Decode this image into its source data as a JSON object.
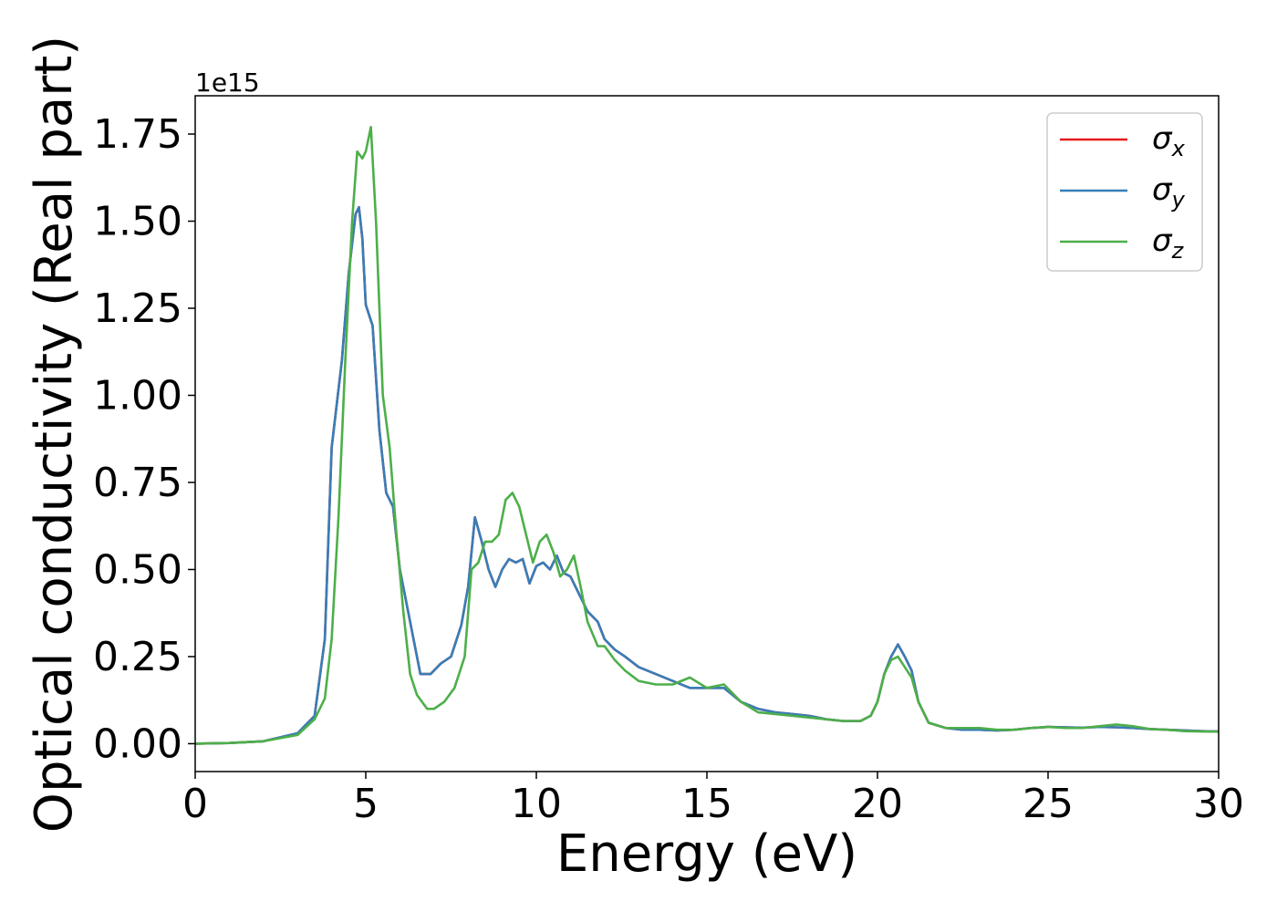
{
  "chart_data": {
    "type": "line",
    "xlabel": "Energy (eV)",
    "ylabel": "Optical conductivity (Real part)",
    "y_offset_label": "1e15",
    "xlim": [
      0,
      30
    ],
    "ylim": [
      -0.08,
      1.86
    ],
    "x_ticks": [
      0,
      5,
      10,
      15,
      20,
      25,
      30
    ],
    "x_tick_labels": [
      "0",
      "5",
      "10",
      "15",
      "20",
      "25",
      "30"
    ],
    "y_ticks": [
      0.0,
      0.25,
      0.5,
      0.75,
      1.0,
      1.25,
      1.5,
      1.75
    ],
    "y_tick_labels": [
      "0.00",
      "0.25",
      "0.50",
      "0.75",
      "1.00",
      "1.25",
      "1.50",
      "1.75"
    ],
    "grid": false,
    "legend_position": "top-right",
    "series": [
      {
        "name": "σx",
        "symbol": "σ",
        "subscript": "x",
        "color": "#e41a1c",
        "x": [
          0,
          1,
          2,
          3,
          3.5,
          3.8,
          4.0,
          4.3,
          4.5,
          4.7,
          4.8,
          4.9,
          5.0,
          5.2,
          5.4,
          5.6,
          5.8,
          6.0,
          6.3,
          6.6,
          6.9,
          7.2,
          7.5,
          7.8,
          8.0,
          8.2,
          8.4,
          8.6,
          8.8,
          9.0,
          9.2,
          9.4,
          9.6,
          9.8,
          10.0,
          10.2,
          10.4,
          10.6,
          10.8,
          11.0,
          11.2,
          11.5,
          11.8,
          12.0,
          12.3,
          12.6,
          13.0,
          13.5,
          14.0,
          14.5,
          15.0,
          15.5,
          16.0,
          16.5,
          17.0,
          17.5,
          18.0,
          18.5,
          19.0,
          19.5,
          19.8,
          20.0,
          20.2,
          20.4,
          20.6,
          20.8,
          21.0,
          21.2,
          21.5,
          22.0,
          22.5,
          23.0,
          23.5,
          24.0,
          24.5,
          25.0,
          25.5,
          26.0,
          26.5,
          27.0,
          27.5,
          28.0,
          28.5,
          29.0,
          29.5,
          30.0
        ],
        "y": [
          0.0,
          0.002,
          0.007,
          0.03,
          0.08,
          0.3,
          0.85,
          1.1,
          1.35,
          1.52,
          1.54,
          1.45,
          1.26,
          1.2,
          0.9,
          0.72,
          0.68,
          0.5,
          0.35,
          0.2,
          0.2,
          0.23,
          0.25,
          0.34,
          0.45,
          0.65,
          0.58,
          0.5,
          0.45,
          0.5,
          0.53,
          0.52,
          0.53,
          0.46,
          0.51,
          0.52,
          0.5,
          0.54,
          0.49,
          0.48,
          0.44,
          0.38,
          0.35,
          0.3,
          0.27,
          0.25,
          0.22,
          0.2,
          0.18,
          0.16,
          0.16,
          0.16,
          0.12,
          0.1,
          0.09,
          0.085,
          0.08,
          0.07,
          0.065,
          0.065,
          0.08,
          0.12,
          0.2,
          0.25,
          0.285,
          0.25,
          0.21,
          0.12,
          0.06,
          0.045,
          0.04,
          0.04,
          0.038,
          0.04,
          0.045,
          0.048,
          0.047,
          0.046,
          0.048,
          0.047,
          0.045,
          0.042,
          0.04,
          0.038,
          0.036,
          0.035
        ]
      },
      {
        "name": "σy",
        "symbol": "σ",
        "subscript": "y",
        "color": "#377eb8",
        "x": [
          0,
          1,
          2,
          3,
          3.5,
          3.8,
          4.0,
          4.3,
          4.5,
          4.7,
          4.8,
          4.9,
          5.0,
          5.2,
          5.4,
          5.6,
          5.8,
          6.0,
          6.3,
          6.6,
          6.9,
          7.2,
          7.5,
          7.8,
          8.0,
          8.2,
          8.4,
          8.6,
          8.8,
          9.0,
          9.2,
          9.4,
          9.6,
          9.8,
          10.0,
          10.2,
          10.4,
          10.6,
          10.8,
          11.0,
          11.2,
          11.5,
          11.8,
          12.0,
          12.3,
          12.6,
          13.0,
          13.5,
          14.0,
          14.5,
          15.0,
          15.5,
          16.0,
          16.5,
          17.0,
          17.5,
          18.0,
          18.5,
          19.0,
          19.5,
          19.8,
          20.0,
          20.2,
          20.4,
          20.6,
          20.8,
          21.0,
          21.2,
          21.5,
          22.0,
          22.5,
          23.0,
          23.5,
          24.0,
          24.5,
          25.0,
          25.5,
          26.0,
          26.5,
          27.0,
          27.5,
          28.0,
          28.5,
          29.0,
          29.5,
          30.0
        ],
        "y": [
          0.0,
          0.002,
          0.007,
          0.03,
          0.08,
          0.3,
          0.85,
          1.1,
          1.35,
          1.52,
          1.54,
          1.45,
          1.26,
          1.2,
          0.9,
          0.72,
          0.68,
          0.5,
          0.35,
          0.2,
          0.2,
          0.23,
          0.25,
          0.34,
          0.45,
          0.65,
          0.58,
          0.5,
          0.45,
          0.5,
          0.53,
          0.52,
          0.53,
          0.46,
          0.51,
          0.52,
          0.5,
          0.54,
          0.49,
          0.48,
          0.44,
          0.38,
          0.35,
          0.3,
          0.27,
          0.25,
          0.22,
          0.2,
          0.18,
          0.16,
          0.16,
          0.16,
          0.12,
          0.1,
          0.09,
          0.085,
          0.08,
          0.07,
          0.065,
          0.065,
          0.08,
          0.12,
          0.2,
          0.25,
          0.285,
          0.25,
          0.21,
          0.12,
          0.06,
          0.045,
          0.04,
          0.04,
          0.038,
          0.04,
          0.045,
          0.048,
          0.047,
          0.046,
          0.048,
          0.047,
          0.045,
          0.042,
          0.04,
          0.038,
          0.036,
          0.035
        ]
      },
      {
        "name": "σz",
        "symbol": "σ",
        "subscript": "z",
        "color": "#4daf4a",
        "x": [
          0,
          1,
          2,
          3,
          3.5,
          3.8,
          4.0,
          4.2,
          4.4,
          4.6,
          4.75,
          4.9,
          5.0,
          5.15,
          5.3,
          5.5,
          5.7,
          5.9,
          6.1,
          6.3,
          6.5,
          6.8,
          7.0,
          7.3,
          7.6,
          7.9,
          8.1,
          8.3,
          8.5,
          8.7,
          8.9,
          9.1,
          9.3,
          9.5,
          9.7,
          9.9,
          10.1,
          10.3,
          10.5,
          10.7,
          10.9,
          11.1,
          11.3,
          11.5,
          11.8,
          12.0,
          12.3,
          12.6,
          13.0,
          13.5,
          14.0,
          14.5,
          15.0,
          15.5,
          16.0,
          16.5,
          17.0,
          17.5,
          18.0,
          18.5,
          19.0,
          19.5,
          19.8,
          20.0,
          20.2,
          20.4,
          20.6,
          20.8,
          21.0,
          21.2,
          21.5,
          22.0,
          22.5,
          23.0,
          23.5,
          24.0,
          24.5,
          25.0,
          25.5,
          26.0,
          26.5,
          27.0,
          27.5,
          28.0,
          28.5,
          29.0,
          29.5,
          30.0
        ],
        "y": [
          0.0,
          0.002,
          0.007,
          0.025,
          0.07,
          0.13,
          0.3,
          0.65,
          1.1,
          1.5,
          1.7,
          1.68,
          1.7,
          1.77,
          1.5,
          1.0,
          0.85,
          0.6,
          0.38,
          0.2,
          0.14,
          0.1,
          0.1,
          0.12,
          0.16,
          0.25,
          0.5,
          0.52,
          0.58,
          0.58,
          0.6,
          0.7,
          0.72,
          0.68,
          0.6,
          0.52,
          0.58,
          0.6,
          0.55,
          0.48,
          0.5,
          0.54,
          0.45,
          0.35,
          0.28,
          0.28,
          0.24,
          0.21,
          0.18,
          0.17,
          0.17,
          0.19,
          0.16,
          0.17,
          0.12,
          0.09,
          0.085,
          0.08,
          0.075,
          0.07,
          0.065,
          0.065,
          0.08,
          0.12,
          0.2,
          0.24,
          0.25,
          0.22,
          0.19,
          0.12,
          0.06,
          0.045,
          0.045,
          0.045,
          0.04,
          0.04,
          0.045,
          0.048,
          0.045,
          0.045,
          0.05,
          0.055,
          0.05,
          0.042,
          0.04,
          0.036,
          0.035,
          0.035
        ]
      }
    ]
  }
}
